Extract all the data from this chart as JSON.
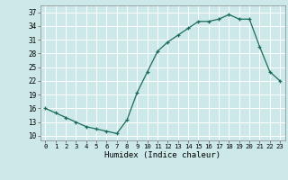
{
  "x": [
    0,
    1,
    2,
    3,
    4,
    5,
    6,
    7,
    8,
    9,
    10,
    11,
    12,
    13,
    14,
    15,
    16,
    17,
    18,
    19,
    20,
    21,
    22,
    23
  ],
  "y": [
    16,
    15,
    14,
    13,
    12,
    11.5,
    11,
    10.5,
    13.5,
    19.5,
    24,
    28.5,
    30.5,
    32,
    33.5,
    35,
    35,
    35.5,
    36.5,
    35.5,
    35.5,
    29.5,
    24,
    22
  ],
  "xlabel": "Humidex (Indice chaleur)",
  "line_color": "#1a6b5a",
  "marker": "+",
  "bg_color": "#cce8e8",
  "grid_major_color": "#aaaaaa",
  "grid_minor_color": "#dddddd",
  "yticks": [
    10,
    13,
    16,
    19,
    22,
    25,
    28,
    31,
    34,
    37
  ],
  "ylim": [
    9,
    38.5
  ],
  "xlim": [
    -0.5,
    23.5
  ]
}
